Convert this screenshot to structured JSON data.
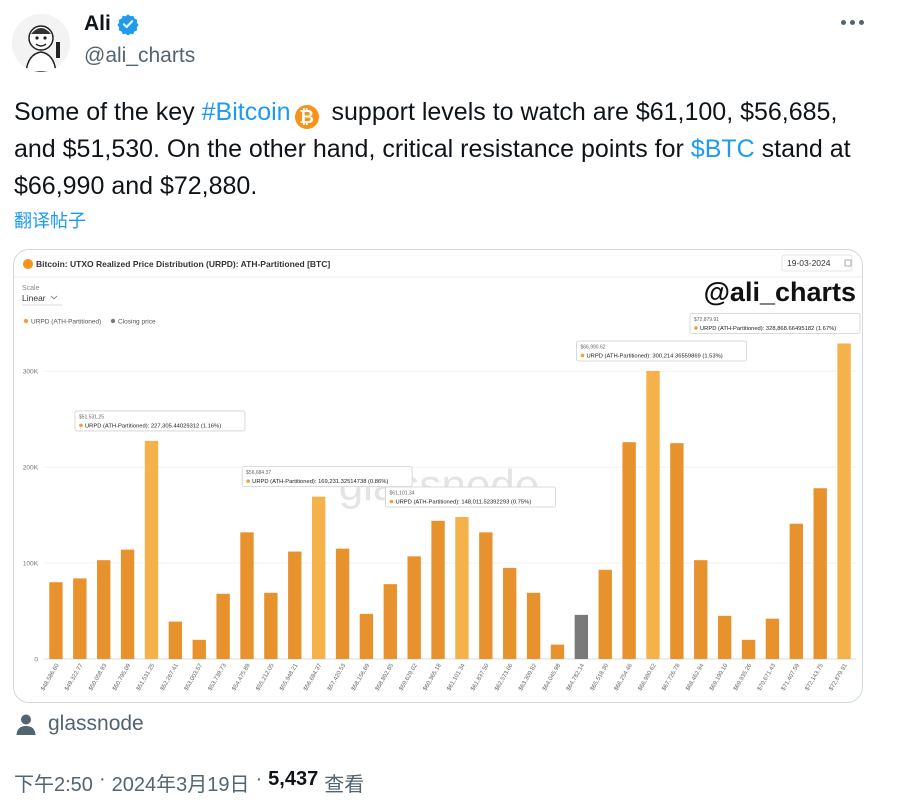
{
  "author": {
    "display_name": "Ali",
    "handle": "@ali_charts"
  },
  "tweet": {
    "text_1": "Some of the key ",
    "hashtag": "#Bitcoin",
    "text_2": " support levels to watch are $61,100, $56,685, and $51,530. On the other hand, critical resistance points for ",
    "cashtag": "$BTC",
    "text_3": " stand at $66,990 and $72,880.",
    "translate_label": "翻译帖子"
  },
  "media_card": {
    "title": "Bitcoin: UTXO Realized Price Distribution (URPD): ATH-Partitioned [BTC]",
    "date": "19-03-2024",
    "scale_label": "Scale",
    "scale_value": "Linear",
    "watermark": "@ali_charts",
    "brand_watermark": "glassnode",
    "legend": [
      {
        "label": "URPD (ATH-Partitioned)",
        "color": "#f2a03a"
      },
      {
        "label": "Closing price",
        "color": "#7a7a7a"
      }
    ]
  },
  "chart_data": {
    "type": "bar",
    "categories": [
      "$48,586.60",
      "$49,322.77",
      "$50,058.93",
      "$50,795.09",
      "$51,531.25",
      "$52,267.41",
      "$53,003.57",
      "$53,739.73",
      "$54,475.89",
      "$55,212.05",
      "$55,948.21",
      "$56,684.37",
      "$57,420.53",
      "$58,156.69",
      "$58,892.85",
      "$59,629.02",
      "$60,365.18",
      "$61,101.34",
      "$61,837.50",
      "$62,573.66",
      "$63,309.82",
      "$64,045.98",
      "$64,782.14",
      "$65,518.30",
      "$66,254.46",
      "$66,990.62",
      "$67,726.78",
      "$68,462.94",
      "$69,199.10",
      "$69,935.26",
      "$70,671.43",
      "$71,407.59",
      "$72,143.75",
      "$72,879.91"
    ],
    "values": [
      80000,
      84000,
      103000,
      114000,
      227305,
      39000,
      20000,
      68000,
      132000,
      69000,
      112000,
      169231,
      115000,
      47000,
      78000,
      107000,
      144000,
      148011,
      132000,
      95000,
      69000,
      15000,
      46000,
      93000,
      226000,
      300214,
      225000,
      103000,
      45000,
      20000,
      42000,
      141000,
      178000,
      328868
    ],
    "closing_price_index": 22,
    "yticks": [
      0,
      100000,
      200000,
      300000
    ],
    "ytick_labels": [
      "0",
      "100K",
      "200K",
      "300K"
    ],
    "ylim": [
      0,
      345000
    ],
    "highlighted_indices": [
      4,
      11,
      17,
      25,
      33
    ],
    "tooltips": [
      {
        "index": 4,
        "price": "$51,531.25",
        "text": "URPD (ATH-Partitioned): 227,305.44029312 (1.16%)"
      },
      {
        "index": 11,
        "price": "$56,684.37",
        "text": "URPD (ATH-Partitioned): 169,231.32514738 (0.86%)"
      },
      {
        "index": 17,
        "price": "$61,101.34",
        "text": "URPD (ATH-Partitioned): 148,011.52392293 (0.75%)"
      },
      {
        "index": 25,
        "price": "$66,990.62",
        "text": "URPD (ATH-Partitioned): 300,214.36559869 (1.53%)"
      },
      {
        "index": 33,
        "price": "$72,879.91",
        "text": "URPD (ATH-Partitioned): 328,868.66495182 (1.67%)"
      }
    ],
    "colors": {
      "bar": "#e8922e",
      "highlight": "#f5b24a",
      "closing": "#7a7a7a"
    }
  },
  "source": {
    "name": "glassnode"
  },
  "meta": {
    "time": "下午2:50",
    "date": "2024年3月19日",
    "views": "5,437",
    "views_label": "查看"
  }
}
